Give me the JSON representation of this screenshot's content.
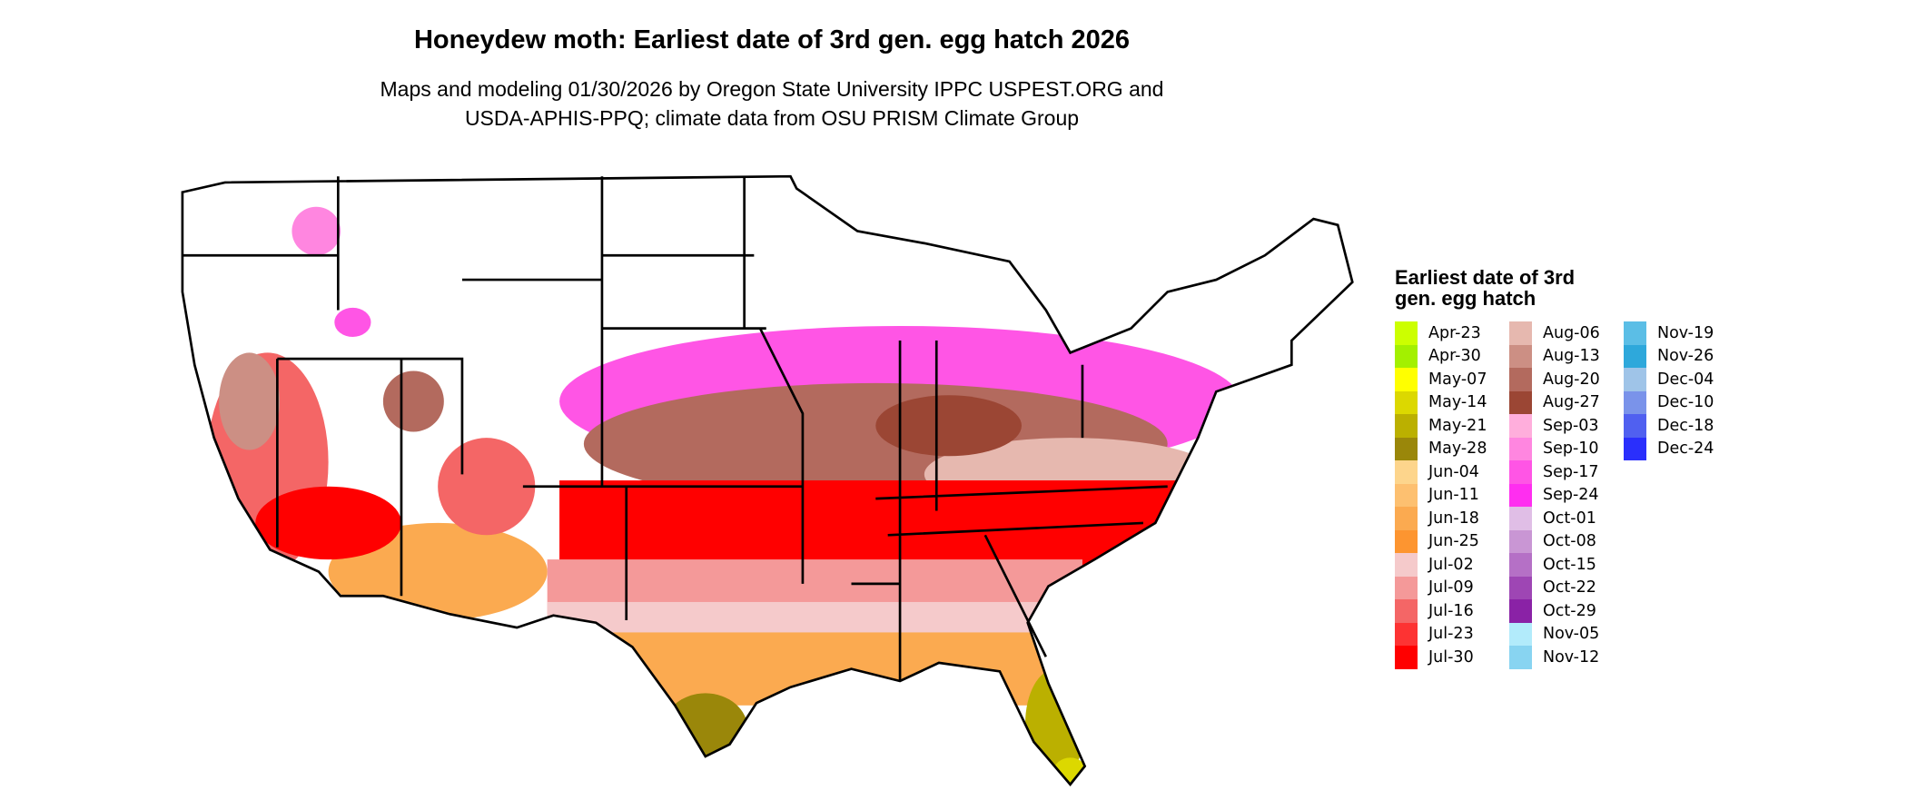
{
  "title": "Honeydew moth: Earliest date of 3rd gen. egg hatch 2026",
  "subtitle_lines": [
    "Maps and modeling 01/30/2026 by Oregon State University IPPC USPEST.ORG and",
    "USDA-APHIS-PPQ; climate data from OSU PRISM Climate Group"
  ],
  "legend": {
    "title": "Earliest date of 3rd gen. egg hatch",
    "columns": [
      [
        {
          "label": "Apr-23",
          "color": "#ccff00"
        },
        {
          "label": "Apr-30",
          "color": "#a3f000"
        },
        {
          "label": "May-07",
          "color": "#ffff00"
        },
        {
          "label": "May-14",
          "color": "#dcd800"
        },
        {
          "label": "May-21",
          "color": "#bbb000"
        },
        {
          "label": "May-28",
          "color": "#9a870a"
        },
        {
          "label": "Jun-04",
          "color": "#fdd58c"
        },
        {
          "label": "Jun-11",
          "color": "#fdc070"
        },
        {
          "label": "Jun-18",
          "color": "#fbaa50"
        },
        {
          "label": "Jun-25",
          "color": "#fd9530"
        },
        {
          "label": "Jul-02",
          "color": "#f5cacb"
        },
        {
          "label": "Jul-09",
          "color": "#f49999"
        },
        {
          "label": "Jul-16",
          "color": "#f46666"
        },
        {
          "label": "Jul-23",
          "color": "#fd3333"
        },
        {
          "label": "Jul-30",
          "color": "#ff0000"
        }
      ],
      [
        {
          "label": "Aug-06",
          "color": "#e6b8af"
        },
        {
          "label": "Aug-13",
          "color": "#cc8f84"
        },
        {
          "label": "Aug-20",
          "color": "#b36a5e"
        },
        {
          "label": "Aug-27",
          "color": "#9b4634"
        },
        {
          "label": "Sep-03",
          "color": "#ffaedc"
        },
        {
          "label": "Sep-10",
          "color": "#ff86e0"
        },
        {
          "label": "Sep-17",
          "color": "#ff55e5"
        },
        {
          "label": "Sep-24",
          "color": "#ff2ef0"
        },
        {
          "label": "Oct-01",
          "color": "#e0bee6"
        },
        {
          "label": "Oct-08",
          "color": "#c996d4"
        },
        {
          "label": "Oct-15",
          "color": "#b570c6"
        },
        {
          "label": "Oct-22",
          "color": "#9e46b4"
        },
        {
          "label": "Oct-29",
          "color": "#8a22a6"
        },
        {
          "label": "Nov-05",
          "color": "#b2ebfb"
        },
        {
          "label": "Nov-12",
          "color": "#88d4f1"
        }
      ],
      [
        {
          "label": "Nov-19",
          "color": "#5bbee6"
        },
        {
          "label": "Nov-26",
          "color": "#2ea8db"
        },
        {
          "label": "Dec-04",
          "color": "#9fc4e8"
        },
        {
          "label": "Dec-10",
          "color": "#7a93ea"
        },
        {
          "label": "Dec-18",
          "color": "#5060f0"
        },
        {
          "label": "Dec-24",
          "color": "#2a2ffc"
        }
      ]
    ]
  }
}
